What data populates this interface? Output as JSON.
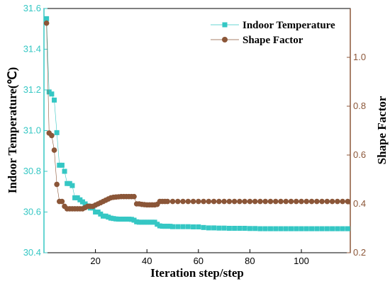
{
  "chart_data": {
    "type": "line",
    "title": "",
    "xlabel": "Iteration step/step",
    "ylabel_left": "Indoor Temperature(℃)",
    "ylabel_right": "Shape Factor",
    "xlim": [
      0,
      119
    ],
    "xticks": [
      20,
      40,
      60,
      80,
      100
    ],
    "ylim_left": [
      30.4,
      31.6
    ],
    "yticks_left": [
      "30.4",
      "30.6",
      "30.8",
      "31.0",
      "31.2",
      "31.4",
      "31.6"
    ],
    "ylim_right": [
      0.2,
      1.2
    ],
    "yticks_right": [
      "0.2",
      "0.4",
      "0.6",
      "0.8",
      "1.0"
    ],
    "grid": false,
    "legend_position": "top-right",
    "colors": {
      "temperature": "#35c7c4",
      "shape": "#8b5638",
      "axis_left": "#35c7c4",
      "axis_right": "#8b5638"
    },
    "series": [
      {
        "name": "Indoor Temperature",
        "axis": "left",
        "marker": "square",
        "x": [
          1,
          2,
          3,
          4,
          5,
          6,
          7,
          8,
          9,
          10,
          11,
          12,
          13,
          14,
          15,
          16,
          17,
          18,
          19,
          20,
          21,
          22,
          23,
          24,
          25,
          26,
          27,
          28,
          29,
          30,
          31,
          32,
          33,
          34,
          35,
          36,
          37,
          38,
          39,
          40,
          41,
          42,
          43,
          44,
          45,
          46,
          47,
          48,
          49,
          50,
          52,
          54,
          56,
          58,
          60,
          62,
          64,
          66,
          68,
          70,
          72,
          74,
          76,
          78,
          80,
          82,
          84,
          86,
          88,
          90,
          92,
          94,
          96,
          98,
          100,
          102,
          104,
          106,
          108,
          110,
          112,
          114,
          116,
          118
        ],
        "values": [
          31.55,
          31.19,
          31.18,
          31.15,
          30.99,
          30.83,
          30.83,
          30.8,
          30.74,
          30.74,
          30.73,
          30.67,
          30.67,
          30.66,
          30.65,
          30.64,
          30.63,
          30.62,
          30.62,
          30.6,
          30.6,
          30.59,
          30.58,
          30.58,
          30.575,
          30.57,
          30.568,
          30.566,
          30.565,
          30.565,
          30.565,
          30.565,
          30.565,
          30.564,
          30.56,
          30.552,
          30.55,
          30.55,
          30.55,
          30.55,
          30.55,
          30.55,
          30.55,
          30.54,
          30.532,
          30.53,
          30.53,
          30.53,
          30.53,
          30.528,
          30.528,
          30.528,
          30.528,
          30.527,
          30.527,
          30.524,
          30.522,
          30.522,
          30.521,
          30.521,
          30.52,
          30.52,
          30.52,
          30.52,
          30.519,
          30.519,
          30.518,
          30.518,
          30.518,
          30.518,
          30.518,
          30.518,
          30.518,
          30.518,
          30.518,
          30.518,
          30.518,
          30.518,
          30.518,
          30.518,
          30.518,
          30.518,
          30.518,
          30.518
        ]
      },
      {
        "name": "Shape Factor",
        "axis": "right",
        "marker": "circle",
        "x": [
          1,
          2,
          3,
          4,
          5,
          6,
          7,
          8,
          9,
          10,
          11,
          12,
          13,
          14,
          15,
          16,
          17,
          18,
          19,
          20,
          21,
          22,
          23,
          24,
          25,
          26,
          27,
          28,
          29,
          30,
          31,
          32,
          33,
          34,
          35,
          36,
          37,
          38,
          39,
          40,
          41,
          42,
          43,
          44,
          45,
          46,
          47,
          48,
          50,
          52,
          54,
          56,
          58,
          60,
          62,
          64,
          66,
          68,
          70,
          72,
          74,
          76,
          78,
          80,
          82,
          84,
          86,
          88,
          90,
          92,
          94,
          96,
          98,
          100,
          102,
          104,
          106,
          108,
          110,
          112,
          114,
          116,
          118
        ],
        "values": [
          1.14,
          0.69,
          0.68,
          0.62,
          0.48,
          0.41,
          0.41,
          0.39,
          0.38,
          0.38,
          0.38,
          0.38,
          0.38,
          0.38,
          0.38,
          0.385,
          0.39,
          0.39,
          0.39,
          0.395,
          0.4,
          0.405,
          0.41,
          0.415,
          0.42,
          0.425,
          0.427,
          0.428,
          0.429,
          0.43,
          0.43,
          0.43,
          0.43,
          0.43,
          0.43,
          0.4,
          0.4,
          0.398,
          0.397,
          0.396,
          0.396,
          0.396,
          0.396,
          0.398,
          0.41,
          0.41,
          0.41,
          0.41,
          0.41,
          0.41,
          0.41,
          0.41,
          0.41,
          0.41,
          0.41,
          0.41,
          0.41,
          0.41,
          0.41,
          0.41,
          0.41,
          0.41,
          0.41,
          0.41,
          0.41,
          0.41,
          0.41,
          0.41,
          0.41,
          0.41,
          0.41,
          0.41,
          0.41,
          0.41,
          0.41,
          0.41,
          0.41,
          0.41,
          0.41,
          0.41,
          0.41,
          0.41,
          0.41
        ]
      }
    ]
  }
}
